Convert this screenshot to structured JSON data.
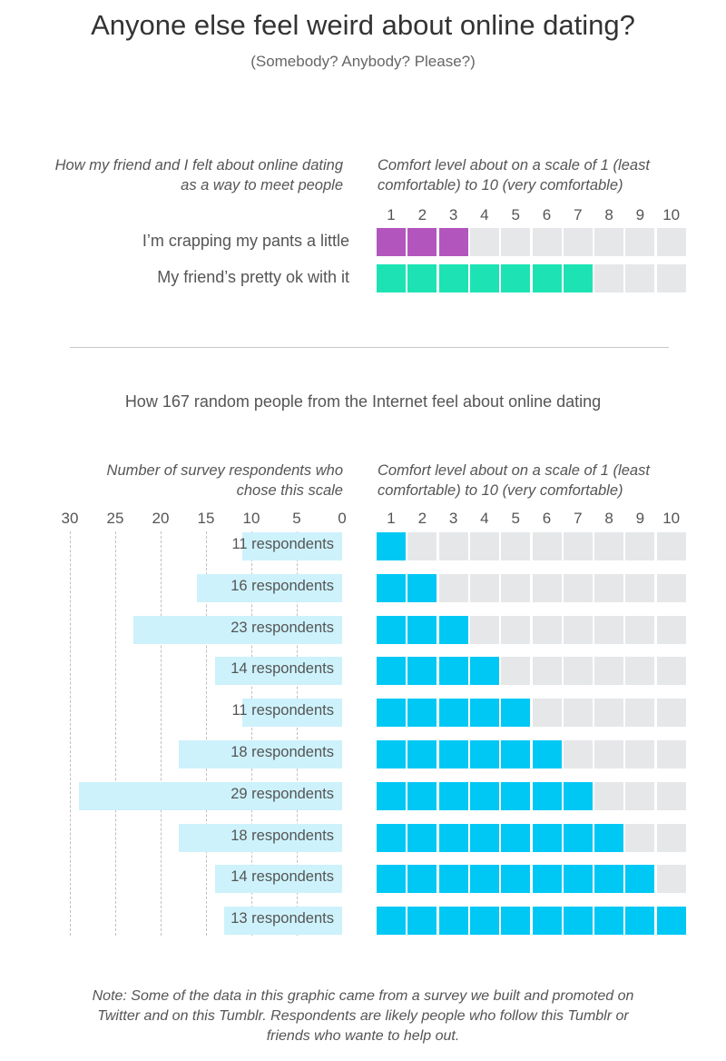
{
  "title": "Anyone else feel weird about online dating?",
  "subtitle": "(Somebody? Anybody? Please?)",
  "comparison": {
    "left_header": "How my friend and I felt about online dating as a way to meet people",
    "right_header": "Comfort level about on a scale of 1 (least comfortable) to 10 (very comfortable)",
    "scale_ticks": [
      "1",
      "2",
      "3",
      "4",
      "5",
      "6",
      "7",
      "8",
      "9",
      "10"
    ],
    "rows": [
      {
        "label": "I’m crapping my pants a little",
        "level": 3,
        "color": "#b256be"
      },
      {
        "label": "My friend’s pretty ok with it",
        "level": 7,
        "color": "#1de3b4"
      }
    ],
    "empty_color": "#e6e7e9"
  },
  "survey": {
    "section_title": "How 167 random people from the Internet feel about online dating",
    "left_header": "Number of survey respondents who chose this scale",
    "right_header": "Comfort level about on a scale of 1 (least comfortable) to 10 (very comfortable)",
    "count_ticks": [
      "30",
      "25",
      "20",
      "15",
      "10",
      "5",
      "0"
    ],
    "scale_ticks": [
      "1",
      "2",
      "3",
      "4",
      "5",
      "6",
      "7",
      "8",
      "9",
      "10"
    ],
    "bar_color": "#cdf2fb",
    "fill_color": "#00c8f5",
    "empty_color": "#e6e7e9"
  },
  "chart_data": {
    "type": "bar",
    "categories": [
      "1",
      "2",
      "3",
      "4",
      "5",
      "6",
      "7",
      "8",
      "9",
      "10"
    ],
    "series": [
      {
        "name": "respondents",
        "values": [
          11,
          16,
          23,
          14,
          11,
          18,
          29,
          18,
          14,
          13
        ]
      }
    ],
    "labels": [
      "11 respondents",
      "16 respondents",
      "23 respondents",
      "14 respondents",
      "11 respondents",
      "18 respondents",
      "29 respondents",
      "18 respondents",
      "14 respondents",
      "13 respondents"
    ],
    "xlabel": "Number of survey respondents who chose this scale",
    "ylabel": "Comfort level about on a scale of 1 (least comfortable) to 10 (very comfortable)",
    "xlim": [
      0,
      30
    ],
    "orientation": "horizontal",
    "direction": "right-to-left",
    "grid": true
  },
  "footnote": "Note: Some of the data in this graphic came from a survey we built and promoted on Twitter and on this Tumblr. Respondents are likely people who follow this Tumblr or friends who wante to help out."
}
